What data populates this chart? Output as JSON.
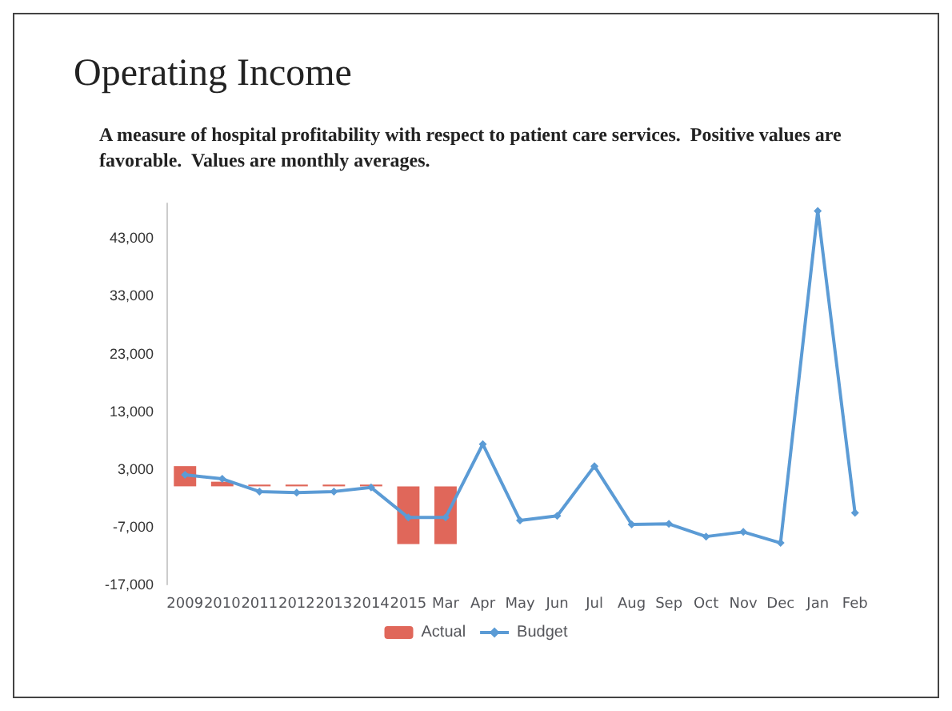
{
  "chart_data": {
    "type": "bar",
    "title": "Operating Income",
    "subtitle": "A measure of hospital profitability with respect to patient care services.  Positive values are favorable.  Values are monthly averages.",
    "categories": [
      "2009",
      "2010",
      "2011",
      "2012",
      "2013",
      "2014",
      "2015",
      "Mar",
      "Apr",
      "May",
      "Jun",
      "Jul",
      "Aug",
      "Sep",
      "Oct",
      "Nov",
      "Dec",
      "Jan",
      "Feb"
    ],
    "series": [
      {
        "name": "Actual",
        "color": "#e0675a",
        "values": [
          3500,
          800,
          300,
          300,
          300,
          300,
          -10000,
          -10000,
          null,
          null,
          null,
          null,
          null,
          null,
          null,
          null,
          null,
          null,
          null
        ]
      },
      {
        "name": "Budget",
        "type": "line",
        "color": "#5b9bd5",
        "values": [
          2000,
          1300,
          -900,
          -1100,
          -900,
          -200,
          -5400,
          -5400,
          7300,
          -5900,
          -5100,
          3500,
          -6600,
          -6500,
          -8700,
          -7900,
          -9800,
          47700,
          -4600
        ]
      }
    ],
    "ylim": [
      -17000,
      49000
    ],
    "yticks": [
      {
        "value": -17000,
        "label": "-17,000"
      },
      {
        "value": -7000,
        "label": "-7,000"
      },
      {
        "value": 3000,
        "label": "3,000"
      },
      {
        "value": 13000,
        "label": "13,000"
      },
      {
        "value": 23000,
        "label": "23,000"
      },
      {
        "value": 33000,
        "label": "33,000"
      },
      {
        "value": 43000,
        "label": "43,000"
      }
    ],
    "grid": false,
    "legend": "bottom",
    "marker": "diamond",
    "line_style": "solid"
  }
}
